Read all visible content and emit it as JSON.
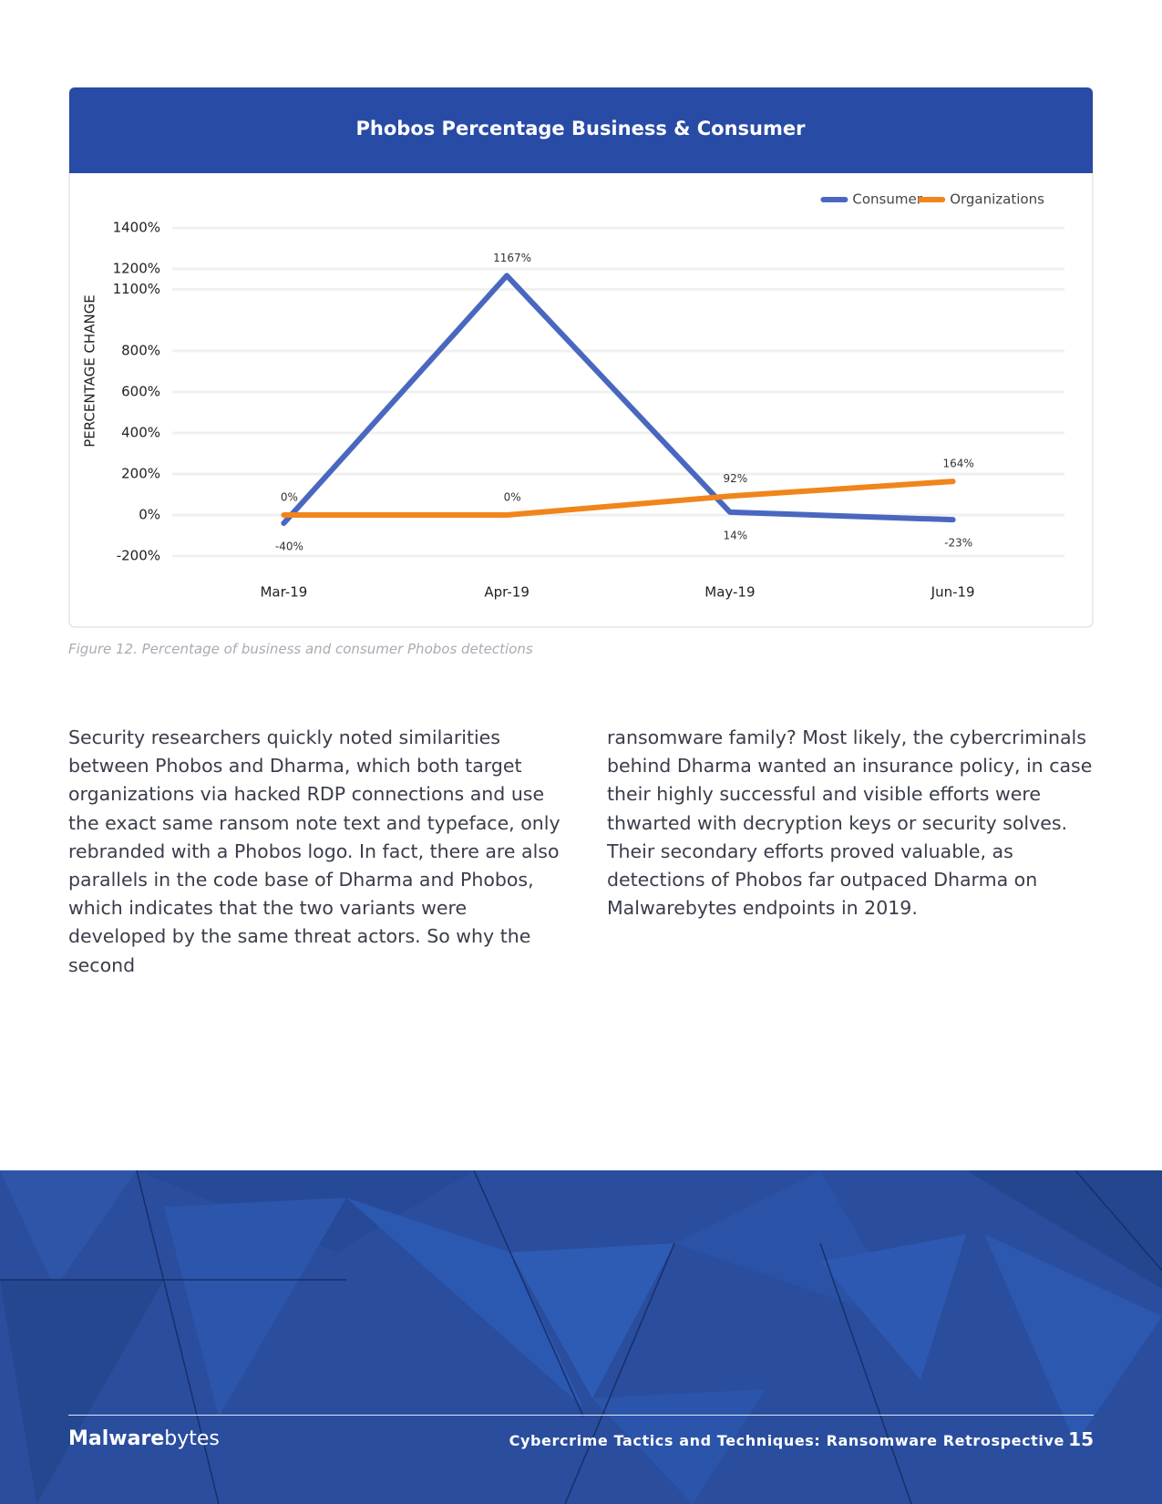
{
  "chart_data": {
    "type": "line",
    "title": "Phobos Percentage Business & Consumer",
    "y_label": "PERCENTAGE CHANGE",
    "categories": [
      "Mar-19",
      "Apr-19",
      "May-19",
      "Jun-19"
    ],
    "series": [
      {
        "name": "Consumer",
        "color": "#4a67c0",
        "values": [
          -40,
          1167,
          14,
          -23
        ],
        "value_labels": [
          "-40%",
          "1167%",
          "14%",
          "-23%"
        ]
      },
      {
        "name": "Organizations",
        "color": "#f0851c",
        "values": [
          0,
          0,
          92,
          164
        ],
        "value_labels": [
          "0%",
          "0%",
          "92%",
          "164%"
        ]
      }
    ],
    "ylim": [
      -200,
      1400
    ],
    "yticks": [
      {
        "value": -200,
        "label": "-200%"
      },
      {
        "value": 0,
        "label": "0%"
      },
      {
        "value": 200,
        "label": "200%"
      },
      {
        "value": 400,
        "label": "400%"
      },
      {
        "value": 600,
        "label": "600%"
      },
      {
        "value": 800,
        "label": "800%"
      },
      {
        "value": 1100,
        "label": "1100%"
      },
      {
        "value": 1200,
        "label": "1200%"
      },
      {
        "value": 1400,
        "label": "1400%"
      }
    ],
    "grid": true,
    "legend": "upper right"
  },
  "caption": "Figure 12. Percentage of business and consumer Phobos detections",
  "body": [
    "Security researchers quickly noted similarities between Phobos and Dharma, which both target organizations via hacked RDP connections and use the exact same ransom note text and typeface, only rebranded with a Phobos logo. In fact, there are also parallels in the code base of Dharma and Phobos, which indicates that the two variants were developed by the same threat actors. So why the second",
    "ransomware family? Most likely, the cybercriminals behind Dharma wanted an insurance policy, in case their highly successful and visible efforts were thwarted with decryption keys or security solves. Their secondary efforts proved valuable, as detections of Phobos far outpaced Dharma on Malwarebytes endpoints in 2019."
  ],
  "footer": {
    "logo": [
      "Malware",
      "bytes"
    ],
    "title": "Cybercrime Tactics and Techniques: Ransomware Retrospective",
    "page": "15"
  }
}
